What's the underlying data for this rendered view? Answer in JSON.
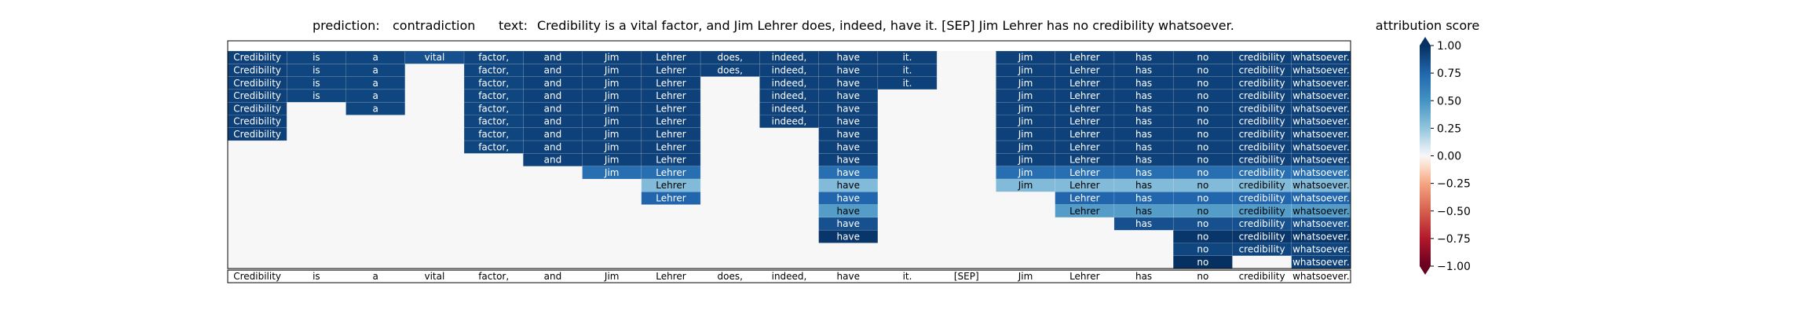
{
  "title": {
    "prediction_label": "prediction:",
    "prediction_value": "contradiction",
    "text_label": "text:",
    "text_value": "Credibility is a vital factor, and Jim Lehrer does, indeed, have it. [SEP] Jim Lehrer has no credibility whatsoever."
  },
  "colorbar": {
    "label": "attribution score",
    "ticks": [
      "1.00",
      "0.75",
      "0.50",
      "0.25",
      "0.00",
      "−0.25",
      "−0.50",
      "−0.75",
      "−1.00"
    ],
    "colors": {
      "max": "#053061",
      "mid": "#f7f7f7",
      "min": "#67001f"
    }
  },
  "chart_data": {
    "type": "heatmap",
    "xlabel": "",
    "ylabel": "",
    "value_range": [
      -1.0,
      1.0
    ],
    "tokens": [
      "Credibility",
      "is",
      "a",
      "vital",
      "factor,",
      "and",
      "Jim",
      "Lehrer",
      "does,",
      "indeed,",
      "have",
      "it.",
      "[SEP]",
      "Jim",
      "Lehrer",
      "has",
      "no",
      "credibility",
      "whatsoever."
    ],
    "rows": [
      [
        0.92,
        0.9,
        0.9,
        0.85,
        0.9,
        0.92,
        0.92,
        0.92,
        0.92,
        0.92,
        0.92,
        0.92,
        0.0,
        0.92,
        0.92,
        0.92,
        0.92,
        0.92,
        0.92
      ],
      [
        0.92,
        0.9,
        0.9,
        0.0,
        0.9,
        0.92,
        0.92,
        0.92,
        0.92,
        0.92,
        0.92,
        0.92,
        0.0,
        0.92,
        0.92,
        0.92,
        0.92,
        0.92,
        0.92
      ],
      [
        0.92,
        0.9,
        0.9,
        0.0,
        0.9,
        0.92,
        0.92,
        0.92,
        0.0,
        0.92,
        0.92,
        0.92,
        0.0,
        0.92,
        0.92,
        0.92,
        0.92,
        0.92,
        0.92
      ],
      [
        0.92,
        0.9,
        0.9,
        0.0,
        0.9,
        0.92,
        0.92,
        0.92,
        0.0,
        0.92,
        0.92,
        0.0,
        0.0,
        0.92,
        0.92,
        0.92,
        0.92,
        0.92,
        0.92
      ],
      [
        0.92,
        0.0,
        0.9,
        0.0,
        0.9,
        0.92,
        0.92,
        0.92,
        0.0,
        0.92,
        0.92,
        0.0,
        0.0,
        0.92,
        0.92,
        0.92,
        0.92,
        0.92,
        0.92
      ],
      [
        0.92,
        0.0,
        0.0,
        0.0,
        0.9,
        0.92,
        0.92,
        0.92,
        0.0,
        0.92,
        0.92,
        0.0,
        0.0,
        0.92,
        0.92,
        0.92,
        0.92,
        0.92,
        0.92
      ],
      [
        0.92,
        0.0,
        0.0,
        0.0,
        0.9,
        0.92,
        0.92,
        0.92,
        0.0,
        0.0,
        0.92,
        0.0,
        0.0,
        0.92,
        0.92,
        0.92,
        0.92,
        0.92,
        0.92
      ],
      [
        0.0,
        0.0,
        0.0,
        0.0,
        0.9,
        0.92,
        0.92,
        0.92,
        0.0,
        0.0,
        0.92,
        0.0,
        0.0,
        0.92,
        0.92,
        0.92,
        0.92,
        0.92,
        0.92
      ],
      [
        0.0,
        0.0,
        0.0,
        0.0,
        0.0,
        0.92,
        0.92,
        0.92,
        0.0,
        0.0,
        0.92,
        0.0,
        0.0,
        0.92,
        0.92,
        0.92,
        0.92,
        0.92,
        0.92
      ],
      [
        0.0,
        0.0,
        0.0,
        0.0,
        0.0,
        0.0,
        0.7,
        0.7,
        0.0,
        0.0,
        0.7,
        0.0,
        0.0,
        0.7,
        0.7,
        0.7,
        0.7,
        0.7,
        0.7
      ],
      [
        0.0,
        0.0,
        0.0,
        0.0,
        0.0,
        0.0,
        0.0,
        0.3,
        0.0,
        0.0,
        0.3,
        0.0,
        0.0,
        0.3,
        0.3,
        0.3,
        0.3,
        0.3,
        0.3
      ],
      [
        0.0,
        0.0,
        0.0,
        0.0,
        0.0,
        0.0,
        0.0,
        0.75,
        0.0,
        0.0,
        0.75,
        0.0,
        0.0,
        0.0,
        0.75,
        0.75,
        0.75,
        0.75,
        0.75
      ],
      [
        0.0,
        0.0,
        0.0,
        0.0,
        0.0,
        0.0,
        0.0,
        0.0,
        0.0,
        0.0,
        0.45,
        0.0,
        0.0,
        0.0,
        0.45,
        0.45,
        0.45,
        0.45,
        0.45
      ],
      [
        0.0,
        0.0,
        0.0,
        0.0,
        0.0,
        0.0,
        0.0,
        0.0,
        0.0,
        0.0,
        0.85,
        0.0,
        0.0,
        0.0,
        0.0,
        0.85,
        0.85,
        0.85,
        0.85
      ],
      [
        0.0,
        0.0,
        0.0,
        0.0,
        0.0,
        0.0,
        0.0,
        0.0,
        0.0,
        0.0,
        0.97,
        0.0,
        0.0,
        0.0,
        0.0,
        0.0,
        0.97,
        0.97,
        0.97
      ],
      [
        0.0,
        0.0,
        0.0,
        0.0,
        0.0,
        0.0,
        0.0,
        0.0,
        0.0,
        0.0,
        0.0,
        0.0,
        0.0,
        0.0,
        0.0,
        0.0,
        0.9,
        0.9,
        0.9
      ],
      [
        0.0,
        0.0,
        0.0,
        0.0,
        0.0,
        0.0,
        0.0,
        0.0,
        0.0,
        0.0,
        0.0,
        0.0,
        0.0,
        0.0,
        0.0,
        0.0,
        1.0,
        0.0,
        0.92
      ]
    ]
  }
}
